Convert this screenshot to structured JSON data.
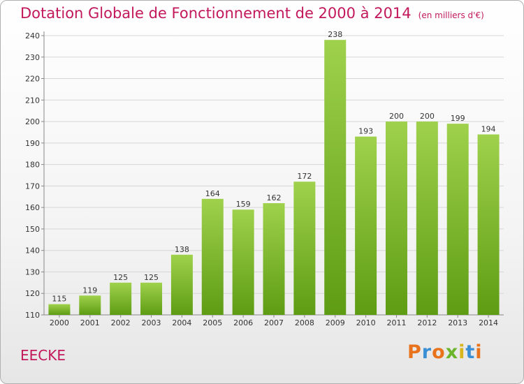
{
  "header": {
    "title": "Dotation Globale de Fonctionnement de 2000 à 2014",
    "unit": "(en milliers d'€)"
  },
  "footer": {
    "commune": "EECKE",
    "logo_text": "Proxiti"
  },
  "colors": {
    "title": "#c2185b",
    "bar_top": "#9fd14c",
    "bar_bottom": "#5e9c14",
    "gridline": "#d6d6d6",
    "label": "#333333"
  },
  "chart_data": {
    "type": "bar",
    "title": "Dotation Globale de Fonctionnement de 2000 à 2014",
    "xlabel": "",
    "ylabel": "",
    "categories": [
      "2000",
      "2001",
      "2002",
      "2003",
      "2004",
      "2005",
      "2006",
      "2007",
      "2008",
      "2009",
      "2010",
      "2011",
      "2012",
      "2013",
      "2014"
    ],
    "values": [
      115,
      119,
      125,
      125,
      138,
      164,
      159,
      162,
      172,
      238,
      193,
      200,
      200,
      199,
      194
    ],
    "ylim": [
      110,
      240
    ],
    "yticks": [
      110,
      120,
      130,
      140,
      150,
      160,
      170,
      180,
      190,
      200,
      210,
      220,
      230,
      240
    ],
    "grid": true,
    "legend": "none"
  }
}
